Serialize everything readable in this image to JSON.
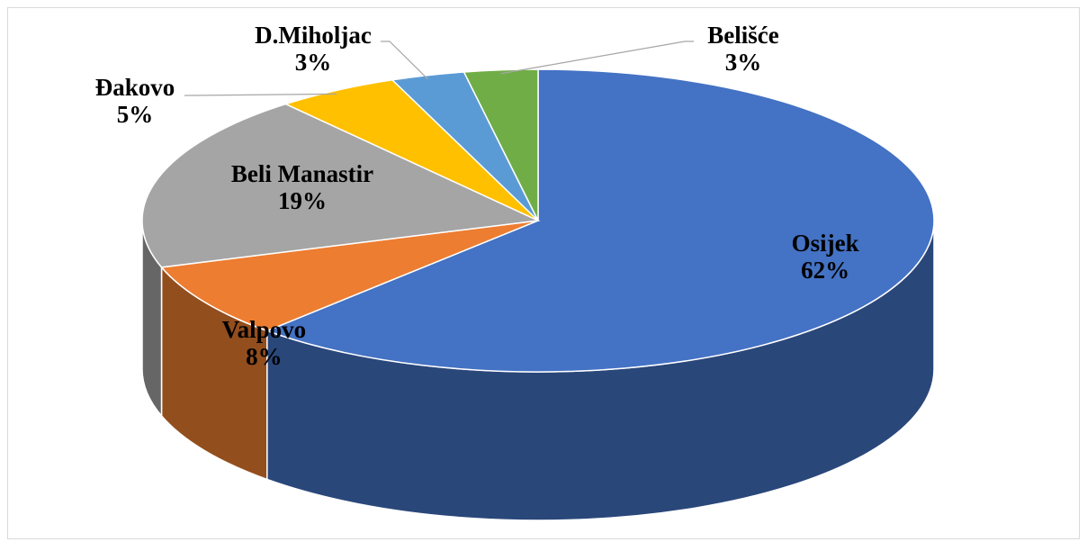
{
  "chart_data": {
    "type": "pie3d",
    "categories": [
      "Osijek",
      "Valpovo",
      "Beli Manastir",
      "Đakovo",
      "D.Miholjac",
      "Belišće"
    ],
    "values": [
      62,
      8,
      19,
      5,
      3,
      3
    ],
    "value_labels": [
      "62%",
      "8%",
      "19%",
      "5%",
      "3%",
      "3%"
    ],
    "colors": [
      "#4472c4",
      "#ed7d31",
      "#a5a5a5",
      "#ffc000",
      "#5b9bd5",
      "#70ad47"
    ]
  }
}
